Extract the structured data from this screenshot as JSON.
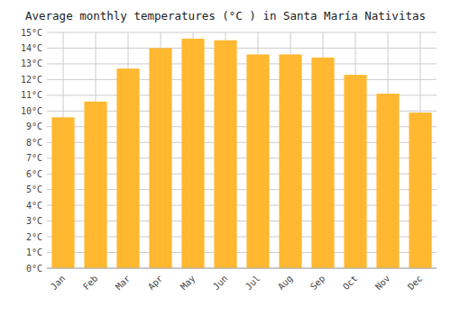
{
  "chart_data": {
    "type": "bar",
    "title": "Average monthly temperatures (°C ) in Santa María Nativitas",
    "categories": [
      "Jan",
      "Feb",
      "Mar",
      "Apr",
      "May",
      "Jun",
      "Jul",
      "Aug",
      "Sep",
      "Oct",
      "Nov",
      "Dec"
    ],
    "values": [
      9.6,
      10.6,
      12.7,
      14.0,
      14.6,
      14.5,
      13.6,
      13.6,
      13.4,
      12.3,
      11.1,
      9.9
    ],
    "color": "#FFB830",
    "ylim": [
      0,
      15
    ],
    "yticks": [
      {
        "value": 0,
        "label": "0°C"
      },
      {
        "value": 1,
        "label": "1°C"
      },
      {
        "value": 2,
        "label": "2°C"
      },
      {
        "value": 3,
        "label": "3°C"
      },
      {
        "value": 4,
        "label": "4°C"
      },
      {
        "value": 5,
        "label": "5°C"
      },
      {
        "value": 6,
        "label": "6°C"
      },
      {
        "value": 7,
        "label": "7°C"
      },
      {
        "value": 8,
        "label": "8°C"
      },
      {
        "value": 9,
        "label": "9°C"
      },
      {
        "value": 10,
        "label": "10°C"
      },
      {
        "value": 11,
        "label": "11°C"
      },
      {
        "value": 12,
        "label": "12°C"
      },
      {
        "value": 13,
        "label": "13°C"
      },
      {
        "value": 14,
        "label": "14°C"
      },
      {
        "value": 15,
        "label": "15°C"
      }
    ],
    "grid": true
  }
}
